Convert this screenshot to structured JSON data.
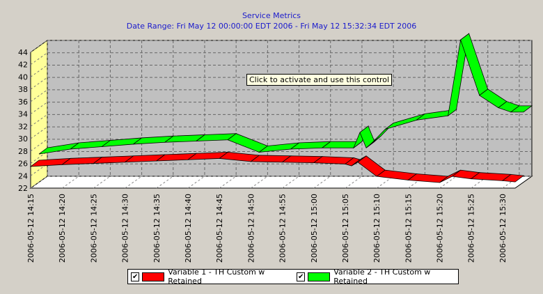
{
  "window": {
    "tooltip": "Click to activate and use this control"
  },
  "chart_data": {
    "type": "area",
    "title": "Service Metrics",
    "subtitle": "Date Range: Fri May 12 00:00:00 EDT 2006 - Fri May 12 15:32:34 EDT 2006",
    "xlabel": "",
    "ylabel": "",
    "ylim": [
      22,
      44
    ],
    "yticks": [
      22,
      24,
      26,
      28,
      30,
      32,
      34,
      36,
      38,
      40,
      42,
      44
    ],
    "xlim": [
      "2006-05-12 14:15",
      "2006-05-12 15:32"
    ],
    "xticks": [
      "2006-05-12 14:15",
      "2006-05-12 14:20",
      "2006-05-12 14:25",
      "2006-05-12 14:30",
      "2006-05-12 14:35",
      "2006-05-12 14:40",
      "2006-05-12 14:45",
      "2006-05-12 14:50",
      "2006-05-12 14:55",
      "2006-05-12 15:00",
      "2006-05-12 15:05",
      "2006-05-12 15:10",
      "2006-05-12 15:15",
      "2006-05-12 15:20",
      "2006-05-12 15:25",
      "2006-05-12 15:30"
    ],
    "grid": true,
    "legend_position": "bottom",
    "series": [
      {
        "name": "Variable 1 - TH Custom w Retained",
        "color": "#ff0000",
        "x": [
          "2006-05-12 14:15",
          "2006-05-12 14:20",
          "2006-05-12 14:25",
          "2006-05-12 14:30",
          "2006-05-12 14:35",
          "2006-05-12 14:40",
          "2006-05-12 14:45",
          "2006-05-12 14:50",
          "2006-05-12 14:55",
          "2006-05-12 15:00",
          "2006-05-12 15:05",
          "2006-05-12 15:06",
          "2006-05-12 15:07",
          "2006-05-12 15:10",
          "2006-05-12 15:15",
          "2006-05-12 15:20",
          "2006-05-12 15:22",
          "2006-05-12 15:25",
          "2006-05-12 15:30",
          "2006-05-12 15:32"
        ],
        "y": [
          25.5,
          25.8,
          26.0,
          26.2,
          26.4,
          26.6,
          26.8,
          26.3,
          26.2,
          26.1,
          25.9,
          25.6,
          26.2,
          23.9,
          23.3,
          22.9,
          23.9,
          23.5,
          23.2,
          23.0
        ]
      },
      {
        "name": "Variable 2 - TH Custom w Retained",
        "color": "#00ff00",
        "x": [
          "2006-05-12 14:15",
          "2006-05-12 14:20",
          "2006-05-12 14:25",
          "2006-05-12 14:30",
          "2006-05-12 14:35",
          "2006-05-12 14:40",
          "2006-05-12 14:45",
          "2006-05-12 14:50",
          "2006-05-12 14:55",
          "2006-05-12 15:00",
          "2006-05-12 15:05",
          "2006-05-12 15:06",
          "2006-05-12 15:07",
          "2006-05-12 15:08",
          "2006-05-12 15:10",
          "2006-05-12 15:15",
          "2006-05-12 15:20",
          "2006-05-12 15:22",
          "2006-05-12 15:25",
          "2006-05-12 15:28",
          "2006-05-12 15:30",
          "2006-05-12 15:32"
        ],
        "y": [
          26.5,
          27.3,
          27.7,
          28.1,
          28.4,
          28.6,
          28.8,
          26.8,
          27.3,
          27.5,
          27.5,
          30.0,
          27.5,
          28.4,
          30.5,
          32.0,
          32.7,
          45.0,
          36.0,
          34.0,
          33.3,
          33.3
        ]
      }
    ]
  }
}
